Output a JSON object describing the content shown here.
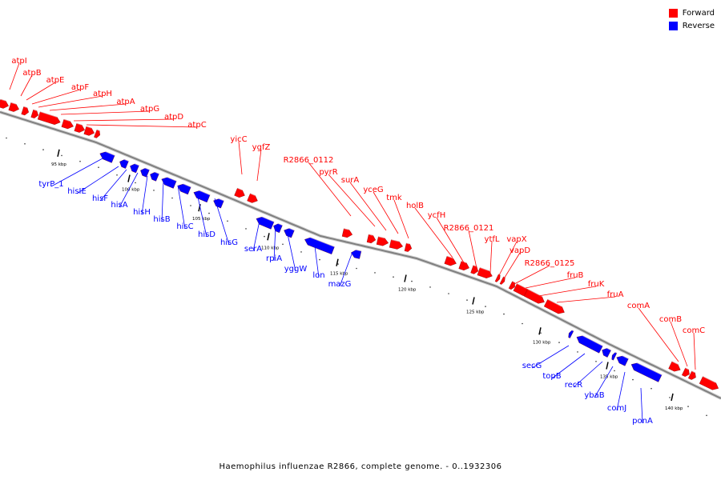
{
  "legend": {
    "forward_label": "Forward",
    "reverse_label": "Reverse",
    "forward_color": "#ff0000",
    "reverse_color": "#0000ff"
  },
  "caption": "Haemophilus influenzae R2866, complete genome. - 0..1932306",
  "colors": {
    "forward": "#ff0000",
    "reverse": "#0000ff",
    "backbone": "#808080"
  },
  "forward_genes": [
    "atpI",
    "atpB",
    "atpE",
    "atpF",
    "atpH",
    "atpA",
    "atpG",
    "atpD",
    "atpC",
    "yicC",
    "ygfZ",
    "R2866_0112",
    "pyrR",
    "surA",
    "yceG",
    "tmk",
    "holB",
    "ycfH",
    "R2866_0121",
    "ytfL",
    "vapX",
    "vapD",
    "R2866_0125",
    "fruB",
    "fruK",
    "fruA",
    "comA",
    "comB",
    "comC"
  ],
  "reverse_genes": [
    "tyrP_1",
    "hisIE",
    "hisF",
    "hisA",
    "hisH",
    "hisB",
    "hisC",
    "hisD",
    "hisG",
    "serA",
    "rpiA",
    "yggW",
    "lon",
    "mazG",
    "secG",
    "topB",
    "recR",
    "ybaB",
    "comJ",
    "ponA"
  ],
  "ticks": [
    "95 kbp",
    "100 kbp",
    "105 kbp",
    "110 kbp",
    "115 kbp",
    "120 kbp",
    "125 kbp",
    "130 kbp",
    "135 kbp",
    "140 kbp"
  ]
}
